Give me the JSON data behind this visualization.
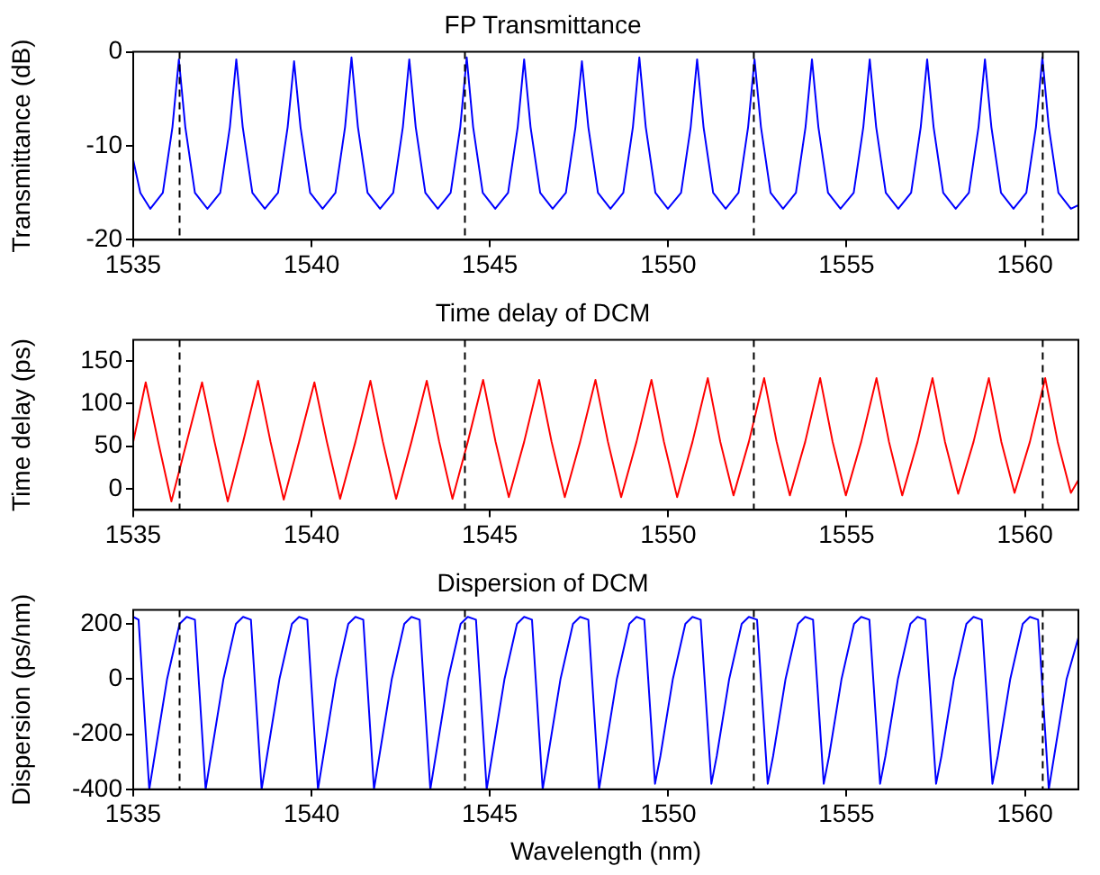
{
  "chart_data": [
    {
      "type": "line",
      "title": "FP Transmittance",
      "ylabel": "Transmittance (dB)",
      "x": [
        1535.0,
        1535.2,
        1535.48,
        1535.83,
        1536.1,
        1536.28,
        1536.46,
        1536.73,
        1537.08,
        1537.44,
        1537.71,
        1537.89,
        1538.07,
        1538.34,
        1538.69,
        1539.06,
        1539.33,
        1539.51,
        1539.69,
        1539.96,
        1540.31,
        1540.67,
        1540.94,
        1541.12,
        1541.3,
        1541.57,
        1541.92,
        1542.29,
        1542.56,
        1542.74,
        1542.92,
        1543.19,
        1543.54,
        1543.9,
        1544.17,
        1544.35,
        1544.53,
        1544.8,
        1545.15,
        1545.51,
        1545.78,
        1545.96,
        1546.14,
        1546.41,
        1546.76,
        1547.13,
        1547.4,
        1547.58,
        1547.76,
        1548.03,
        1548.38,
        1548.74,
        1549.01,
        1549.19,
        1549.37,
        1549.64,
        1549.99,
        1550.36,
        1550.63,
        1550.81,
        1550.99,
        1551.26,
        1551.61,
        1551.97,
        1552.24,
        1552.42,
        1552.6,
        1552.87,
        1553.22,
        1553.58,
        1553.85,
        1554.03,
        1554.21,
        1554.48,
        1554.83,
        1555.2,
        1555.47,
        1555.65,
        1555.83,
        1556.1,
        1556.45,
        1556.81,
        1557.08,
        1557.26,
        1557.44,
        1557.71,
        1558.06,
        1558.43,
        1558.7,
        1558.88,
        1559.06,
        1559.33,
        1559.68,
        1560.04,
        1560.31,
        1560.49,
        1560.67,
        1560.94,
        1561.29,
        1561.5
      ],
      "series": [
        {
          "color": "#0000ff",
          "values": [
            -11.5,
            -15,
            -16.7,
            -15,
            -8,
            -0.8,
            -8,
            -15,
            -16.7,
            -15,
            -8,
            -0.8,
            -8,
            -15,
            -16.7,
            -15,
            -8,
            -1,
            -8,
            -15,
            -16.7,
            -15,
            -8,
            -0.6,
            -8,
            -15,
            -16.7,
            -15,
            -8,
            -0.8,
            -8,
            -15,
            -16.7,
            -15,
            -8,
            -0.6,
            -8,
            -15,
            -16.7,
            -15,
            -8,
            -0.8,
            -8,
            -15,
            -16.7,
            -15,
            -8,
            -1,
            -8,
            -15,
            -16.7,
            -15,
            -8,
            -0.6,
            -8,
            -15,
            -16.7,
            -15,
            -8,
            -0.8,
            -8,
            -15,
            -16.7,
            -15,
            -8,
            -0.8,
            -8,
            -15,
            -16.7,
            -15,
            -8,
            -0.8,
            -8,
            -15,
            -16.7,
            -15,
            -8,
            -0.8,
            -8,
            -15,
            -16.7,
            -15,
            -8,
            -0.8,
            -8,
            -15,
            -16.7,
            -15,
            -8,
            -0.8,
            -8,
            -15,
            -16.7,
            -15,
            -8,
            -0.6,
            -8,
            -15,
            -16.7,
            -16.3
          ]
        }
      ],
      "xlim": [
        1535,
        1561.5
      ],
      "xticks": [
        1535,
        1540,
        1545,
        1550,
        1555,
        1560
      ],
      "ylim": [
        -20,
        0
      ],
      "yticks": [
        -20,
        -10,
        0
      ],
      "ref_lines": [
        {
          "axis": "x",
          "value": 1536.3,
          "color": "#000000",
          "line_style": "dashed"
        },
        {
          "axis": "x",
          "value": 1544.3,
          "color": "#000000",
          "line_style": "dashed"
        },
        {
          "axis": "x",
          "value": 1552.4,
          "color": "#000000",
          "line_style": "dashed"
        },
        {
          "axis": "x",
          "value": 1560.5,
          "color": "#000000",
          "line_style": "dashed"
        }
      ]
    },
    {
      "type": "line",
      "title": "Time delay of DCM",
      "ylabel": "Time delay (ps)",
      "x": [
        1535.0,
        1535.35,
        1535.7,
        1536.07,
        1536.5,
        1536.93,
        1537.28,
        1537.65,
        1538.08,
        1538.5,
        1538.85,
        1539.22,
        1539.65,
        1540.08,
        1540.43,
        1540.8,
        1541.23,
        1541.65,
        1542.0,
        1542.37,
        1542.8,
        1543.23,
        1543.58,
        1543.95,
        1544.38,
        1544.81,
        1545.16,
        1545.53,
        1545.96,
        1546.38,
        1546.73,
        1547.1,
        1547.53,
        1547.96,
        1548.31,
        1548.68,
        1549.11,
        1549.53,
        1549.88,
        1550.25,
        1550.68,
        1551.11,
        1551.46,
        1551.83,
        1552.26,
        1552.69,
        1553.04,
        1553.41,
        1553.84,
        1554.26,
        1554.61,
        1554.98,
        1555.41,
        1555.84,
        1556.19,
        1556.56,
        1556.99,
        1557.41,
        1557.76,
        1558.13,
        1558.56,
        1558.99,
        1559.34,
        1559.71,
        1560.14,
        1560.57,
        1560.92,
        1561.29,
        1561.5
      ],
      "series": [
        {
          "color": "#ff0000",
          "values": [
            55,
            125,
            55,
            -15,
            55,
            125,
            55,
            -15,
            55,
            127,
            55,
            -13,
            55,
            125,
            55,
            -12,
            55,
            127,
            55,
            -12,
            55,
            127,
            55,
            -12,
            55,
            128,
            55,
            -10,
            55,
            128,
            55,
            -10,
            55,
            128,
            55,
            -10,
            55,
            128,
            55,
            -10,
            55,
            130,
            55,
            -8,
            55,
            130,
            55,
            -8,
            55,
            130,
            55,
            -8,
            55,
            130,
            55,
            -8,
            55,
            130,
            55,
            -6,
            55,
            130,
            55,
            -5,
            55,
            130,
            55,
            -5,
            10
          ]
        }
      ],
      "xlim": [
        1535,
        1561.5
      ],
      "xticks": [
        1535,
        1540,
        1545,
        1550,
        1555,
        1560
      ],
      "ylim": [
        -25,
        175
      ],
      "yticks": [
        0,
        50,
        100,
        150
      ],
      "ref_lines": [
        {
          "axis": "x",
          "value": 1536.3,
          "color": "#000000",
          "line_style": "dashed"
        },
        {
          "axis": "x",
          "value": 1544.3,
          "color": "#000000",
          "line_style": "dashed"
        },
        {
          "axis": "x",
          "value": 1552.4,
          "color": "#000000",
          "line_style": "dashed"
        },
        {
          "axis": "x",
          "value": 1560.5,
          "color": "#000000",
          "line_style": "dashed"
        }
      ]
    },
    {
      "type": "line",
      "title": "Dispersion of DCM",
      "xlabel": "Wavelength (nm)",
      "ylabel": "Dispersion (ps/nm)",
      "x": [
        1535.0,
        1535.15,
        1535.45,
        1535.6,
        1535.95,
        1536.3,
        1536.5,
        1536.73,
        1537.03,
        1537.18,
        1537.53,
        1537.88,
        1538.08,
        1538.3,
        1538.6,
        1538.75,
        1539.1,
        1539.45,
        1539.65,
        1539.88,
        1540.18,
        1540.33,
        1540.68,
        1541.03,
        1541.23,
        1541.45,
        1541.75,
        1541.9,
        1542.25,
        1542.6,
        1542.8,
        1543.03,
        1543.33,
        1543.48,
        1543.83,
        1544.18,
        1544.38,
        1544.61,
        1544.91,
        1545.06,
        1545.41,
        1545.76,
        1545.96,
        1546.18,
        1546.48,
        1546.63,
        1546.98,
        1547.33,
        1547.53,
        1547.76,
        1548.06,
        1548.21,
        1548.56,
        1548.91,
        1549.11,
        1549.33,
        1549.63,
        1549.78,
        1550.13,
        1550.48,
        1550.68,
        1550.91,
        1551.21,
        1551.36,
        1551.71,
        1552.06,
        1552.26,
        1552.49,
        1552.79,
        1552.94,
        1553.29,
        1553.64,
        1553.84,
        1554.06,
        1554.36,
        1554.51,
        1554.86,
        1555.21,
        1555.41,
        1555.64,
        1555.94,
        1556.09,
        1556.44,
        1556.79,
        1556.99,
        1557.21,
        1557.51,
        1557.66,
        1558.01,
        1558.36,
        1558.56,
        1558.79,
        1559.09,
        1559.24,
        1559.59,
        1559.94,
        1560.14,
        1560.37,
        1560.67,
        1560.82,
        1561.17,
        1561.5
      ],
      "series": [
        {
          "color": "#0000ff",
          "values": [
            225,
            215,
            -400,
            -280,
            0,
            200,
            225,
            215,
            -400,
            -280,
            0,
            200,
            225,
            215,
            -400,
            -280,
            0,
            200,
            225,
            215,
            -400,
            -280,
            0,
            200,
            225,
            215,
            -400,
            -280,
            0,
            200,
            225,
            215,
            -400,
            -280,
            0,
            200,
            225,
            215,
            -400,
            -280,
            0,
            200,
            225,
            215,
            -400,
            -280,
            0,
            200,
            225,
            215,
            -400,
            -280,
            0,
            200,
            225,
            215,
            -380,
            -280,
            0,
            200,
            225,
            215,
            -380,
            -280,
            0,
            200,
            225,
            215,
            -380,
            -280,
            0,
            200,
            225,
            215,
            -380,
            -280,
            0,
            200,
            225,
            215,
            -380,
            -280,
            0,
            200,
            225,
            215,
            -380,
            -280,
            0,
            200,
            225,
            215,
            -380,
            -280,
            0,
            200,
            225,
            215,
            -400,
            -280,
            0,
            150
          ]
        }
      ],
      "xlim": [
        1535,
        1561.5
      ],
      "xticks": [
        1535,
        1540,
        1545,
        1550,
        1555,
        1560
      ],
      "ylim": [
        -400,
        250
      ],
      "yticks": [
        -400,
        -200,
        0,
        200
      ],
      "ref_lines": [
        {
          "axis": "x",
          "value": 1536.3,
          "color": "#000000",
          "line_style": "dashed"
        },
        {
          "axis": "x",
          "value": 1544.3,
          "color": "#000000",
          "line_style": "dashed"
        },
        {
          "axis": "x",
          "value": 1552.4,
          "color": "#000000",
          "line_style": "dashed"
        },
        {
          "axis": "x",
          "value": 1560.5,
          "color": "#000000",
          "line_style": "dashed"
        }
      ]
    }
  ]
}
